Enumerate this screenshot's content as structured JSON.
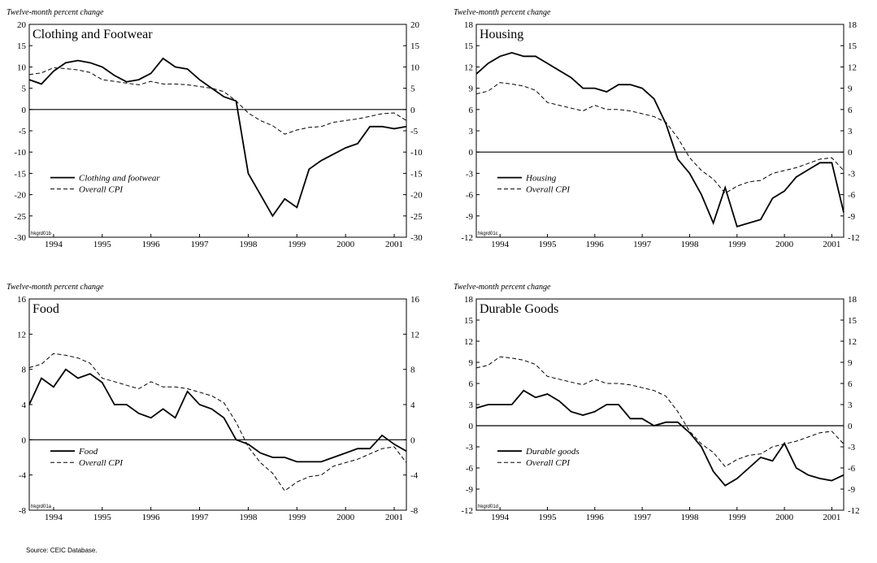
{
  "chart_data": [
    {
      "type": "line",
      "title": "Clothing and Footwear",
      "ylabel": "Twelve-month percent change",
      "code": "hkgrd01b",
      "x": [
        1994.0,
        1994.25,
        1994.5,
        1994.75,
        1995.0,
        1995.25,
        1995.5,
        1995.75,
        1996.0,
        1996.25,
        1996.5,
        1996.75,
        1997.0,
        1997.25,
        1997.5,
        1997.75,
        1998.0,
        1998.25,
        1998.5,
        1998.75,
        1999.0,
        1999.25,
        1999.5,
        1999.75,
        2000.0,
        2000.25,
        2000.5,
        2000.75,
        2001.0,
        2001.25,
        2001.5,
        2001.75
      ],
      "series": [
        {
          "name": "Clothing and footwear",
          "color": "#000000",
          "style": "solid",
          "values": [
            7,
            6,
            9,
            11,
            11.5,
            11,
            10,
            8,
            6.5,
            7,
            8.5,
            12,
            10,
            9.5,
            7,
            5,
            3,
            2,
            -15,
            -20,
            -25,
            -21,
            -23,
            -14,
            -12,
            -10.5,
            -9,
            -8,
            -4,
            -4,
            -4.5,
            -4
          ]
        },
        {
          "name": "Overall CPI",
          "color": "#000000",
          "style": "dashed",
          "values": [
            8.2,
            8.6,
            9.8,
            9.6,
            9.3,
            8.7,
            7.0,
            6.6,
            6.2,
            5.8,
            6.6,
            6.0,
            6.0,
            5.8,
            5.4,
            5.0,
            4.2,
            2.0,
            -0.8,
            -2.6,
            -3.8,
            -5.8,
            -4.8,
            -4.2,
            -4.0,
            -3.0,
            -2.6,
            -2.2,
            -1.6,
            -1.0,
            -0.8,
            -2.6
          ]
        }
      ],
      "xlim": [
        1994.0,
        2001.75
      ],
      "xticks": [
        {
          "value": 1994.5,
          "label": "1994"
        },
        {
          "value": 1995.5,
          "label": "1995"
        },
        {
          "value": 1996.5,
          "label": "1996"
        },
        {
          "value": 1997.5,
          "label": "1997"
        },
        {
          "value": 1998.5,
          "label": "1998"
        },
        {
          "value": 1999.5,
          "label": "1999"
        },
        {
          "value": 2000.5,
          "label": "2000"
        },
        {
          "value": 2001.5,
          "label": "2001"
        }
      ],
      "ylim": [
        -30,
        20
      ],
      "yticks": [
        -30,
        -25,
        -20,
        -15,
        -10,
        -5,
        0,
        5,
        10,
        15,
        20
      ],
      "legend": "lower left"
    },
    {
      "type": "line",
      "title": "Housing",
      "ylabel": "Twelve-month percent change",
      "code": "hkgrd01c",
      "x": [
        1994.0,
        1994.25,
        1994.5,
        1994.75,
        1995.0,
        1995.25,
        1995.5,
        1995.75,
        1996.0,
        1996.25,
        1996.5,
        1996.75,
        1997.0,
        1997.25,
        1997.5,
        1997.75,
        1998.0,
        1998.25,
        1998.5,
        1998.75,
        1999.0,
        1999.25,
        1999.5,
        1999.75,
        2000.0,
        2000.25,
        2000.5,
        2000.75,
        2001.0,
        2001.25,
        2001.5,
        2001.75
      ],
      "series": [
        {
          "name": "Housing",
          "color": "#000000",
          "style": "solid",
          "values": [
            11,
            12.5,
            13.5,
            14,
            13.5,
            13.5,
            12.5,
            11.5,
            10.5,
            9,
            9,
            8.5,
            9.5,
            9.5,
            9,
            7.5,
            4,
            -1,
            -3,
            -6,
            -10,
            -5,
            -10.5,
            -10,
            -9.5,
            -6.5,
            -5.5,
            -3.5,
            -2.5,
            -1.5,
            -1.5,
            -8.5
          ]
        },
        {
          "name": "Overall CPI",
          "color": "#000000",
          "style": "dashed",
          "values": [
            8.2,
            8.6,
            9.8,
            9.6,
            9.3,
            8.7,
            7.0,
            6.6,
            6.2,
            5.8,
            6.6,
            6.0,
            6.0,
            5.8,
            5.4,
            5.0,
            4.2,
            2.0,
            -0.8,
            -2.6,
            -3.8,
            -5.8,
            -4.8,
            -4.2,
            -4.0,
            -3.0,
            -2.6,
            -2.2,
            -1.6,
            -1.0,
            -0.8,
            -2.6
          ]
        }
      ],
      "xlim": [
        1994.0,
        2001.75
      ],
      "xticks": [
        {
          "value": 1994.5,
          "label": "1994"
        },
        {
          "value": 1995.5,
          "label": "1995"
        },
        {
          "value": 1996.5,
          "label": "1996"
        },
        {
          "value": 1997.5,
          "label": "1997"
        },
        {
          "value": 1998.5,
          "label": "1998"
        },
        {
          "value": 1999.5,
          "label": "1999"
        },
        {
          "value": 2000.5,
          "label": "2000"
        },
        {
          "value": 2001.5,
          "label": "2001"
        }
      ],
      "ylim": [
        -12,
        18
      ],
      "yticks": [
        -12,
        -9,
        -6,
        -3,
        0,
        3,
        6,
        9,
        12,
        15,
        18
      ],
      "legend": "lower left"
    },
    {
      "type": "line",
      "title": "Food",
      "ylabel": "Twelve-month percent change",
      "code": "hkgrd01a",
      "x": [
        1994.0,
        1994.25,
        1994.5,
        1994.75,
        1995.0,
        1995.25,
        1995.5,
        1995.75,
        1996.0,
        1996.25,
        1996.5,
        1996.75,
        1997.0,
        1997.25,
        1997.5,
        1997.75,
        1998.0,
        1998.25,
        1998.5,
        1998.75,
        1999.0,
        1999.25,
        1999.5,
        1999.75,
        2000.0,
        2000.25,
        2000.5,
        2000.75,
        2001.0,
        2001.25,
        2001.5,
        2001.75
      ],
      "series": [
        {
          "name": "Food",
          "color": "#000000",
          "style": "solid",
          "values": [
            4,
            7,
            6,
            8,
            7,
            7.5,
            6.5,
            4,
            4,
            3,
            2.5,
            3.5,
            2.5,
            5.5,
            4,
            3.5,
            2.5,
            0,
            -0.5,
            -1.5,
            -2,
            -2,
            -2.5,
            -2.5,
            -2.5,
            -2,
            -1.5,
            -1,
            -1,
            0.5,
            -0.5,
            -1.3
          ]
        },
        {
          "name": "Overall CPI",
          "color": "#000000",
          "style": "dashed",
          "values": [
            8.2,
            8.6,
            9.8,
            9.6,
            9.3,
            8.7,
            7.0,
            6.6,
            6.2,
            5.8,
            6.6,
            6.0,
            6.0,
            5.8,
            5.4,
            5.0,
            4.2,
            2.0,
            -0.8,
            -2.6,
            -3.8,
            -5.8,
            -4.8,
            -4.2,
            -4.0,
            -3.0,
            -2.6,
            -2.2,
            -1.6,
            -1.0,
            -0.8,
            -2.6
          ]
        }
      ],
      "xlim": [
        1994.0,
        2001.75
      ],
      "xticks": [
        {
          "value": 1994.5,
          "label": "1994"
        },
        {
          "value": 1995.5,
          "label": "1995"
        },
        {
          "value": 1996.5,
          "label": "1996"
        },
        {
          "value": 1997.5,
          "label": "1997"
        },
        {
          "value": 1998.5,
          "label": "1998"
        },
        {
          "value": 1999.5,
          "label": "1999"
        },
        {
          "value": 2000.5,
          "label": "2000"
        },
        {
          "value": 2001.5,
          "label": "2001"
        }
      ],
      "ylim": [
        -8,
        16
      ],
      "yticks": [
        -8,
        -4,
        0,
        4,
        8,
        12,
        16
      ],
      "legend": "lower left"
    },
    {
      "type": "line",
      "title": "Durable Goods",
      "ylabel": "Twelve-month percent change",
      "code": "hkgrd01d",
      "x": [
        1994.0,
        1994.25,
        1994.5,
        1994.75,
        1995.0,
        1995.25,
        1995.5,
        1995.75,
        1996.0,
        1996.25,
        1996.5,
        1996.75,
        1997.0,
        1997.25,
        1997.5,
        1997.75,
        1998.0,
        1998.25,
        1998.5,
        1998.75,
        1999.0,
        1999.25,
        1999.5,
        1999.75,
        2000.0,
        2000.25,
        2000.5,
        2000.75,
        2001.0,
        2001.25,
        2001.5,
        2001.75
      ],
      "series": [
        {
          "name": "Durable goods",
          "color": "#000000",
          "style": "solid",
          "values": [
            2.5,
            3,
            3,
            3,
            5,
            4,
            4.5,
            3.5,
            2,
            1.5,
            2,
            3,
            3,
            1,
            1,
            0,
            0.5,
            0.5,
            -1,
            -3,
            -6.5,
            -8.5,
            -7.5,
            -6,
            -4.5,
            -5,
            -2.5,
            -6,
            -7,
            -7.5,
            -7.8,
            -7
          ]
        },
        {
          "name": "Overall CPI",
          "color": "#000000",
          "style": "dashed",
          "values": [
            8.2,
            8.6,
            9.8,
            9.6,
            9.3,
            8.7,
            7.0,
            6.6,
            6.2,
            5.8,
            6.6,
            6.0,
            6.0,
            5.8,
            5.4,
            5.0,
            4.2,
            2.0,
            -0.8,
            -2.6,
            -3.8,
            -5.8,
            -4.8,
            -4.2,
            -4.0,
            -3.0,
            -2.6,
            -2.2,
            -1.6,
            -1.0,
            -0.8,
            -2.6
          ]
        }
      ],
      "xlim": [
        1994.0,
        2001.75
      ],
      "xticks": [
        {
          "value": 1994.5,
          "label": "1994"
        },
        {
          "value": 1995.5,
          "label": "1995"
        },
        {
          "value": 1996.5,
          "label": "1996"
        },
        {
          "value": 1997.5,
          "label": "1997"
        },
        {
          "value": 1998.5,
          "label": "1998"
        },
        {
          "value": 1999.5,
          "label": "1999"
        },
        {
          "value": 2000.5,
          "label": "2000"
        },
        {
          "value": 2001.5,
          "label": "2001"
        }
      ],
      "ylim": [
        -12,
        18
      ],
      "yticks": [
        -12,
        -9,
        -6,
        -3,
        0,
        3,
        6,
        9,
        12,
        15,
        18
      ],
      "legend": "lower left"
    }
  ],
  "source": "Source: CEIC Database."
}
